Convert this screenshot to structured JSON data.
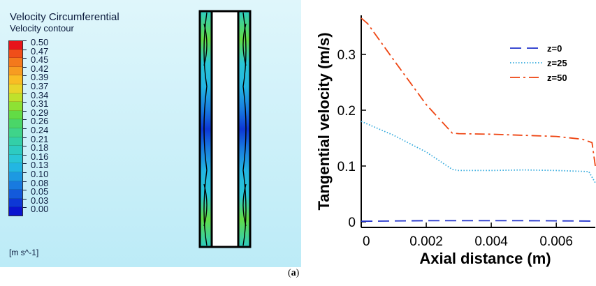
{
  "contour": {
    "title": "Velocity Circumferential",
    "subtitle": "Velocity contour",
    "unit": "[m s^-1]",
    "levels": [
      "0.50",
      "0.47",
      "0.45",
      "0.42",
      "0.39",
      "0.37",
      "0.34",
      "0.31",
      "0.29",
      "0.26",
      "0.24",
      "0.21",
      "0.18",
      "0.16",
      "0.13",
      "0.10",
      "0.08",
      "0.05",
      "0.03",
      "0.00"
    ],
    "colors": [
      "#e8141a",
      "#f04e19",
      "#f4791c",
      "#f79c21",
      "#f9bd24",
      "#e8d52a",
      "#bfe12c",
      "#8ee134",
      "#62dc45",
      "#4ad668",
      "#3fd48a",
      "#33cfa8",
      "#2dcbc1",
      "#29c6d6",
      "#23b6e2",
      "#1d99e2",
      "#187adf",
      "#135adb",
      "#0d37d6",
      "#0a14cf"
    ]
  },
  "chart_data": {
    "type": "line",
    "xlabel": "Axial distance (m)",
    "ylabel": "Tangential velocity (m/s)",
    "xlim": [
      0,
      0.0072
    ],
    "ylim": [
      -0.01,
      0.37
    ],
    "xticks": [
      0,
      0.002,
      0.004,
      0.006
    ],
    "xtick_labels": [
      "0",
      "0.002",
      "0.004",
      "0.006"
    ],
    "yticks": [
      0,
      0.1,
      0.2,
      0.3
    ],
    "ytick_labels": [
      "0",
      "0.1",
      "0.2",
      "0.3"
    ],
    "grid": false,
    "legend": "top-right",
    "series": [
      {
        "name": "z=0",
        "color": "#2233cc",
        "dash": "long-dash",
        "x": [
          0,
          0.001,
          0.002,
          0.003,
          0.004,
          0.005,
          0.006,
          0.0072
        ],
        "y": [
          0.001,
          0.0015,
          0.002,
          0.002,
          0.002,
          0.002,
          0.0018,
          0.0012
        ]
      },
      {
        "name": "z=25",
        "color": "#33aadd",
        "dash": "dotted",
        "x": [
          0,
          0.0002,
          0.001,
          0.002,
          0.0028,
          0.003,
          0.004,
          0.005,
          0.006,
          0.007,
          0.0072
        ],
        "y": [
          0.18,
          0.175,
          0.155,
          0.125,
          0.094,
          0.092,
          0.092,
          0.093,
          0.092,
          0.09,
          0.07
        ]
      },
      {
        "name": "z=50",
        "color": "#ee4411",
        "dash": "dash-dot",
        "x": [
          0,
          0.0002,
          0.001,
          0.002,
          0.0028,
          0.003,
          0.004,
          0.005,
          0.006,
          0.0068,
          0.0071,
          0.0072
        ],
        "y": [
          0.365,
          0.355,
          0.29,
          0.21,
          0.159,
          0.158,
          0.157,
          0.155,
          0.153,
          0.148,
          0.142,
          0.1
        ]
      }
    ]
  },
  "caption": {
    "open": "(",
    "letter": "a",
    "close": ")"
  }
}
